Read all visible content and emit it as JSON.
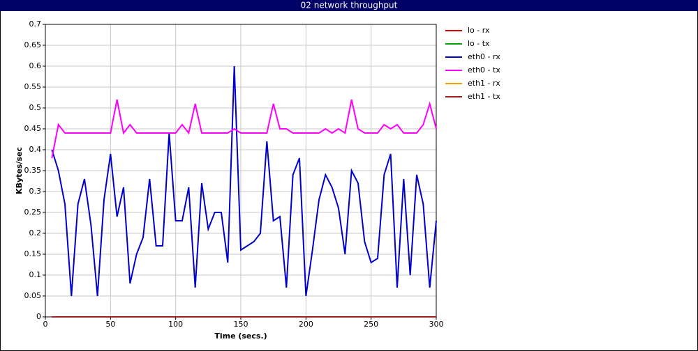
{
  "chart_data": {
    "type": "line",
    "title": "02 network throughput",
    "x_label": "Time (secs.)",
    "y_label": "KBytes/sec",
    "x": [
      5,
      10,
      15,
      20,
      25,
      30,
      35,
      40,
      45,
      50,
      55,
      60,
      65,
      70,
      75,
      80,
      85,
      90,
      95,
      100,
      105,
      110,
      115,
      120,
      125,
      130,
      135,
      140,
      145,
      150,
      155,
      160,
      165,
      170,
      175,
      180,
      185,
      190,
      195,
      200,
      205,
      210,
      215,
      220,
      225,
      230,
      235,
      240,
      245,
      250,
      255,
      260,
      265,
      270,
      275,
      280,
      285,
      290,
      295,
      300
    ],
    "xlim": [
      0,
      300
    ],
    "xticks": [
      0,
      50,
      100,
      150,
      200,
      250,
      300
    ],
    "ylim": [
      0,
      0.7
    ],
    "yticks": [
      0,
      0.05,
      0.1,
      0.15,
      0.2,
      0.25,
      0.3,
      0.35,
      0.4,
      0.45,
      0.5,
      0.55,
      0.6,
      0.65,
      0.7
    ],
    "grid": true,
    "legend": "right",
    "series": [
      {
        "name": "lo - rx",
        "color": "#e00000",
        "values": [
          0,
          0,
          0,
          0,
          0,
          0,
          0,
          0,
          0,
          0,
          0,
          0,
          0,
          0,
          0,
          0,
          0,
          0,
          0,
          0,
          0,
          0,
          0,
          0,
          0,
          0,
          0,
          0,
          0,
          0,
          0,
          0,
          0,
          0,
          0,
          0,
          0,
          0,
          0,
          0,
          0,
          0,
          0,
          0,
          0,
          0,
          0,
          0,
          0,
          0,
          0,
          0,
          0,
          0,
          0,
          0,
          0,
          0,
          0,
          0
        ]
      },
      {
        "name": "lo - tx",
        "color": "#00a000",
        "values": [
          0,
          0,
          0,
          0,
          0,
          0,
          0,
          0,
          0,
          0,
          0,
          0,
          0,
          0,
          0,
          0,
          0,
          0,
          0,
          0,
          0,
          0,
          0,
          0,
          0,
          0,
          0,
          0,
          0,
          0,
          0,
          0,
          0,
          0,
          0,
          0,
          0,
          0,
          0,
          0,
          0,
          0,
          0,
          0,
          0,
          0,
          0,
          0,
          0,
          0,
          0,
          0,
          0,
          0,
          0,
          0,
          0,
          0,
          0,
          0
        ]
      },
      {
        "name": "eth0 - rx",
        "color": "#0000cc",
        "values": [
          0.4,
          0.35,
          0.27,
          0.05,
          0.27,
          0.33,
          0.22,
          0.05,
          0.28,
          0.39,
          0.24,
          0.31,
          0.08,
          0.15,
          0.19,
          0.33,
          0.17,
          0.17,
          0.44,
          0.23,
          0.23,
          0.31,
          0.07,
          0.32,
          0.21,
          0.25,
          0.25,
          0.13,
          0.6,
          0.16,
          0.17,
          0.18,
          0.2,
          0.42,
          0.23,
          0.24,
          0.07,
          0.34,
          0.38,
          0.05,
          0.16,
          0.28,
          0.34,
          0.31,
          0.26,
          0.15,
          0.35,
          0.32,
          0.18,
          0.13,
          0.14,
          0.34,
          0.39,
          0.07,
          0.33,
          0.1,
          0.34,
          0.27,
          0.07,
          0.23
        ]
      },
      {
        "name": "eth0 - tx",
        "color": "#ff00ff",
        "values": [
          0.38,
          0.46,
          0.44,
          0.44,
          0.44,
          0.44,
          0.44,
          0.44,
          0.44,
          0.44,
          0.52,
          0.44,
          0.46,
          0.44,
          0.44,
          0.44,
          0.44,
          0.44,
          0.44,
          0.44,
          0.46,
          0.44,
          0.51,
          0.44,
          0.44,
          0.44,
          0.44,
          0.44,
          0.45,
          0.44,
          0.44,
          0.44,
          0.44,
          0.44,
          0.51,
          0.45,
          0.45,
          0.44,
          0.44,
          0.44,
          0.44,
          0.44,
          0.45,
          0.44,
          0.45,
          0.44,
          0.52,
          0.45,
          0.44,
          0.44,
          0.44,
          0.46,
          0.45,
          0.46,
          0.44,
          0.44,
          0.44,
          0.46,
          0.51,
          0.45
        ]
      },
      {
        "name": "eth1 - rx",
        "color": "#f0a000",
        "values": [
          0,
          0,
          0,
          0,
          0,
          0,
          0,
          0,
          0,
          0,
          0,
          0,
          0,
          0,
          0,
          0,
          0,
          0,
          0,
          0,
          0,
          0,
          0,
          0,
          0,
          0,
          0,
          0,
          0,
          0,
          0,
          0,
          0,
          0,
          0,
          0,
          0,
          0,
          0,
          0,
          0,
          0,
          0,
          0,
          0,
          0,
          0,
          0,
          0,
          0,
          0,
          0,
          0,
          0,
          0,
          0,
          0,
          0,
          0,
          0
        ]
      },
      {
        "name": "eth1 - tx",
        "color": "#a02020",
        "values": [
          0,
          0,
          0,
          0,
          0,
          0,
          0,
          0,
          0,
          0,
          0,
          0,
          0,
          0,
          0,
          0,
          0,
          0,
          0,
          0,
          0,
          0,
          0,
          0,
          0,
          0,
          0,
          0,
          0,
          0,
          0,
          0,
          0,
          0,
          0,
          0,
          0,
          0,
          0,
          0,
          0,
          0,
          0,
          0,
          0,
          0,
          0,
          0,
          0,
          0,
          0,
          0,
          0,
          0,
          0,
          0,
          0,
          0,
          0,
          0
        ]
      }
    ]
  }
}
